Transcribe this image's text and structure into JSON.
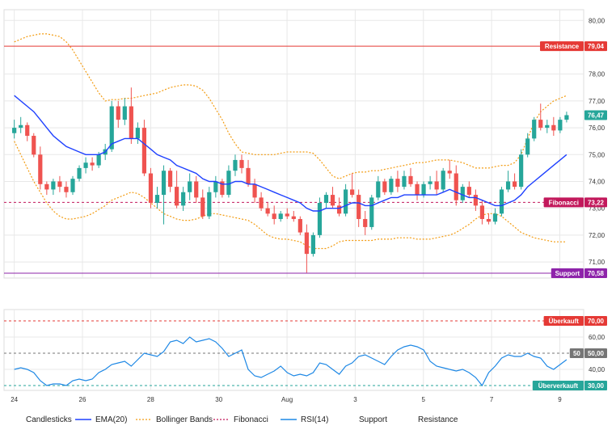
{
  "chart_data": {
    "type": "candlestick",
    "x_ticks": [
      {
        "label": "24",
        "x": 0
      },
      {
        "label": "26",
        "x": 2
      },
      {
        "label": "28",
        "x": 4
      },
      {
        "label": "30",
        "x": 6
      },
      {
        "label": "Aug",
        "x": 8
      },
      {
        "label": "3",
        "x": 10
      },
      {
        "label": "5",
        "x": 12
      },
      {
        "label": "7",
        "x": 14
      },
      {
        "label": "9",
        "x": 16
      }
    ],
    "x_range": [
      -0.3,
      16.7
    ],
    "price_axis": {
      "ylim": [
        70.4,
        80.4
      ],
      "ticks": [
        "71,00",
        "72,00",
        "73,00",
        "74,00",
        "75,00",
        "76,00",
        "77,00",
        "78,00",
        "80,00"
      ],
      "tick_values": [
        71,
        72,
        73,
        74,
        75,
        76,
        77,
        78,
        80
      ]
    },
    "rsi_axis": {
      "ylim": [
        27,
        77
      ],
      "ticks": [
        "40,00",
        "60,00"
      ],
      "tick_values": [
        40,
        60
      ]
    },
    "levels": {
      "resistance": {
        "value": 79.04,
        "label": "Resistance",
        "value_label": "79,04",
        "color": "#e53935"
      },
      "fibonacci": {
        "value": 73.22,
        "label": "Fibonacci",
        "value_label": "73,22",
        "color": "#c2185b"
      },
      "support": {
        "value": 70.58,
        "label": "Support",
        "value_label": "70,58",
        "color": "#8e24aa"
      },
      "last_price": {
        "value": 76.47,
        "label": "76,47",
        "color": "#26a69a"
      }
    },
    "rsi_levels": {
      "overbought": {
        "value": 70,
        "label": "Überkauft",
        "value_label": "70,00",
        "color": "#e53935"
      },
      "mid": {
        "value": 50,
        "label": "50",
        "value_label": "50,00",
        "color": "#757575"
      },
      "oversold": {
        "value": 30,
        "label": "Überverkauft",
        "value_label": "30,00",
        "color": "#26a69a"
      }
    },
    "candles": [
      [
        75.8,
        76.3,
        75.6,
        76.0
      ],
      [
        76.0,
        76.4,
        75.8,
        76.1
      ],
      [
        76.1,
        76.2,
        75.5,
        75.7
      ],
      [
        75.7,
        75.8,
        74.9,
        75.0
      ],
      [
        75.0,
        75.3,
        73.7,
        73.9
      ],
      [
        73.9,
        74.0,
        73.5,
        73.7
      ],
      [
        73.7,
        74.1,
        73.5,
        74.0
      ],
      [
        74.0,
        74.2,
        73.6,
        73.8
      ],
      [
        73.8,
        74.0,
        73.4,
        73.6
      ],
      [
        73.6,
        74.2,
        73.5,
        74.1
      ],
      [
        74.1,
        74.6,
        74.0,
        74.5
      ],
      [
        74.5,
        74.9,
        74.3,
        74.7
      ],
      [
        74.7,
        74.9,
        74.4,
        74.6
      ],
      [
        74.6,
        75.1,
        74.5,
        75.0
      ],
      [
        75.0,
        75.4,
        74.8,
        75.2
      ],
      [
        75.2,
        77.0,
        75.1,
        76.8
      ],
      [
        76.8,
        77.0,
        76.0,
        76.3
      ],
      [
        76.3,
        77.1,
        76.1,
        76.8
      ],
      [
        76.8,
        77.5,
        75.4,
        75.6
      ],
      [
        75.6,
        76.2,
        75.4,
        76.0
      ],
      [
        76.0,
        76.3,
        74.2,
        74.3
      ],
      [
        74.3,
        74.5,
        73.0,
        73.2
      ],
      [
        73.2,
        73.8,
        73.0,
        73.5
      ],
      [
        73.5,
        74.6,
        72.4,
        74.4
      ],
      [
        74.4,
        74.5,
        73.6,
        73.8
      ],
      [
        73.8,
        74.4,
        73.0,
        73.1
      ],
      [
        73.1,
        73.8,
        72.9,
        73.6
      ],
      [
        73.6,
        74.3,
        73.3,
        74.0
      ],
      [
        74.0,
        74.2,
        73.2,
        73.4
      ],
      [
        73.4,
        73.7,
        72.6,
        72.7
      ],
      [
        72.7,
        73.8,
        72.6,
        73.6
      ],
      [
        73.6,
        74.2,
        73.4,
        74.0
      ],
      [
        74.0,
        74.1,
        73.4,
        73.5
      ],
      [
        73.5,
        74.6,
        73.4,
        74.4
      ],
      [
        74.4,
        75.0,
        74.2,
        74.8
      ],
      [
        74.8,
        75.0,
        74.3,
        74.5
      ],
      [
        74.5,
        74.8,
        73.8,
        73.9
      ],
      [
        73.9,
        74.1,
        73.2,
        73.4
      ],
      [
        73.4,
        73.6,
        72.9,
        73.0
      ],
      [
        73.0,
        73.2,
        72.7,
        72.8
      ],
      [
        72.8,
        73.1,
        72.4,
        72.6
      ],
      [
        72.6,
        72.9,
        72.5,
        72.8
      ],
      [
        72.8,
        73.0,
        72.6,
        72.7
      ],
      [
        72.7,
        72.9,
        72.5,
        72.6
      ],
      [
        72.6,
        72.7,
        72.0,
        72.1
      ],
      [
        72.1,
        72.4,
        70.6,
        71.3
      ],
      [
        71.3,
        72.1,
        71.2,
        72.0
      ],
      [
        72.0,
        73.4,
        71.9,
        73.2
      ],
      [
        73.2,
        73.6,
        73.0,
        73.5
      ],
      [
        73.5,
        73.8,
        73.0,
        73.1
      ],
      [
        73.1,
        73.4,
        72.7,
        72.8
      ],
      [
        72.8,
        73.9,
        72.7,
        73.7
      ],
      [
        73.7,
        74.3,
        73.4,
        73.5
      ],
      [
        73.5,
        73.7,
        72.3,
        72.6
      ],
      [
        72.6,
        72.9,
        72.0,
        72.3
      ],
      [
        72.3,
        73.5,
        72.2,
        73.4
      ],
      [
        73.4,
        74.2,
        73.3,
        74.0
      ],
      [
        74.0,
        74.1,
        73.5,
        73.6
      ],
      [
        73.6,
        74.2,
        73.5,
        74.1
      ],
      [
        74.1,
        74.4,
        73.6,
        73.8
      ],
      [
        73.8,
        74.4,
        73.7,
        74.2
      ],
      [
        74.2,
        74.5,
        73.8,
        73.9
      ],
      [
        73.9,
        74.0,
        73.3,
        73.5
      ],
      [
        73.5,
        74.0,
        73.4,
        73.9
      ],
      [
        73.9,
        74.2,
        73.7,
        74.0
      ],
      [
        74.0,
        74.4,
        73.5,
        73.7
      ],
      [
        73.7,
        74.5,
        73.6,
        74.4
      ],
      [
        74.4,
        74.8,
        74.1,
        74.3
      ],
      [
        74.3,
        74.6,
        73.1,
        73.3
      ],
      [
        73.3,
        73.9,
        73.2,
        73.8
      ],
      [
        73.8,
        74.0,
        73.4,
        73.5
      ],
      [
        73.5,
        73.7,
        72.9,
        73.1
      ],
      [
        73.1,
        73.3,
        72.4,
        72.6
      ],
      [
        72.6,
        72.8,
        72.4,
        72.5
      ],
      [
        72.5,
        73.0,
        72.4,
        72.8
      ],
      [
        72.8,
        73.8,
        72.7,
        73.7
      ],
      [
        73.7,
        74.4,
        73.6,
        74.0
      ],
      [
        74.0,
        74.3,
        73.7,
        73.8
      ],
      [
        73.8,
        75.2,
        73.7,
        75.0
      ],
      [
        75.0,
        75.8,
        74.9,
        75.6
      ],
      [
        75.6,
        76.4,
        75.5,
        76.3
      ],
      [
        76.3,
        76.9,
        75.9,
        76.0
      ],
      [
        76.0,
        76.3,
        75.8,
        76.1
      ],
      [
        76.1,
        76.4,
        75.7,
        75.9
      ],
      [
        75.9,
        76.4,
        75.8,
        76.3
      ],
      [
        76.3,
        76.6,
        76.2,
        76.47
      ]
    ],
    "ema20": [
      77.2,
      77.0,
      76.8,
      76.6,
      76.3,
      76.0,
      75.7,
      75.5,
      75.3,
      75.2,
      75.1,
      75.0,
      75.0,
      75.0,
      75.1,
      75.4,
      75.5,
      75.6,
      75.6,
      75.6,
      75.4,
      75.2,
      75.0,
      74.9,
      74.8,
      74.6,
      74.5,
      74.4,
      74.3,
      74.1,
      74.0,
      74.0,
      73.9,
      73.9,
      74.0,
      74.0,
      73.9,
      73.9,
      73.8,
      73.7,
      73.6,
      73.5,
      73.4,
      73.3,
      73.2,
      73.0,
      72.9,
      72.9,
      73.0,
      73.0,
      73.0,
      73.1,
      73.2,
      73.2,
      73.1,
      73.1,
      73.2,
      73.3,
      73.4,
      73.4,
      73.5,
      73.5,
      73.5,
      73.5,
      73.5,
      73.5,
      73.6,
      73.7,
      73.6,
      73.5,
      73.4,
      73.4,
      73.3,
      73.2,
      73.1,
      73.1,
      73.2,
      73.3,
      73.5,
      73.8,
      74.0,
      74.2,
      74.4,
      74.6,
      74.8,
      75.0
    ],
    "bb_upper": [
      79.2,
      79.3,
      79.4,
      79.45,
      79.5,
      79.5,
      79.45,
      79.4,
      79.2,
      78.9,
      78.5,
      78.1,
      77.7,
      77.3,
      77.0,
      77.05,
      77.05,
      77.1,
      77.1,
      77.15,
      77.2,
      77.25,
      77.3,
      77.4,
      77.5,
      77.55,
      77.6,
      77.6,
      77.55,
      77.4,
      77.1,
      76.7,
      76.3,
      75.8,
      75.4,
      75.1,
      75.05,
      75.0,
      75.0,
      75.0,
      75.0,
      75.05,
      75.1,
      75.1,
      75.1,
      75.1,
      75.05,
      74.8,
      74.5,
      74.2,
      74.1,
      74.2,
      74.3,
      74.35,
      74.35,
      74.4,
      74.4,
      74.45,
      74.5,
      74.55,
      74.6,
      74.65,
      74.7,
      74.7,
      74.75,
      74.8,
      74.8,
      74.8,
      74.75,
      74.7,
      74.6,
      74.5,
      74.5,
      74.5,
      74.55,
      74.6,
      74.6,
      74.7,
      75.0,
      75.6,
      76.2,
      76.6,
      76.8,
      77.0,
      77.1,
      77.2
    ],
    "bb_lower": [
      75.5,
      75.0,
      74.5,
      74.0,
      73.6,
      73.2,
      72.9,
      72.7,
      72.6,
      72.6,
      72.65,
      72.7,
      72.8,
      72.95,
      73.1,
      73.3,
      73.4,
      73.5,
      73.6,
      73.55,
      73.4,
      73.2,
      73.0,
      72.8,
      72.7,
      72.6,
      72.55,
      72.55,
      72.6,
      72.7,
      72.8,
      72.8,
      72.75,
      72.7,
      72.65,
      72.6,
      72.55,
      72.4,
      72.2,
      72.0,
      71.9,
      71.85,
      71.85,
      71.8,
      71.75,
      71.6,
      71.5,
      71.5,
      71.5,
      71.6,
      71.75,
      71.8,
      71.8,
      71.8,
      71.8,
      71.8,
      71.85,
      71.85,
      71.85,
      71.9,
      71.9,
      71.9,
      71.85,
      71.85,
      71.85,
      71.9,
      71.95,
      72.0,
      72.1,
      72.25,
      72.4,
      72.6,
      72.75,
      72.8,
      72.8,
      72.7,
      72.5,
      72.3,
      72.1,
      72.0,
      71.9,
      71.85,
      71.8,
      71.75,
      71.75,
      71.75
    ],
    "rsi14": [
      40,
      41,
      40,
      38,
      33,
      30,
      31,
      31,
      30,
      33,
      34,
      33,
      34,
      38,
      40,
      43,
      44,
      45,
      42,
      46,
      50,
      49,
      48,
      51,
      57,
      58,
      56,
      60,
      57,
      58,
      59,
      57,
      53,
      48,
      50,
      52,
      40,
      36,
      35,
      37,
      39,
      42,
      38,
      36,
      37,
      36,
      38,
      44,
      43,
      40,
      37,
      42,
      44,
      48,
      49,
      47,
      45,
      43,
      48,
      52,
      54,
      55,
      54,
      52,
      45,
      42,
      41,
      40,
      39,
      40,
      38,
      35,
      30,
      38,
      42,
      47,
      49,
      48,
      48,
      50,
      48,
      47,
      42,
      40,
      43,
      46
    ],
    "legend": [
      {
        "label": "Candlesticks",
        "color": "#e53935"
      },
      {
        "label": "EMA(20)",
        "color": "#1e40ff"
      },
      {
        "label": "Bollinger Bands",
        "color": "#f39c12"
      },
      {
        "label": "Fibonacci",
        "color": "#c2185b"
      },
      {
        "label": "RSI(14)",
        "color": "#1e88e5"
      },
      {
        "label": "Support",
        "color": "#8e24aa"
      },
      {
        "label": "Resistance",
        "color": "#e53935"
      }
    ],
    "colors": {
      "up": "#26a69a",
      "down": "#ef5350",
      "grid": "#e8e8e8"
    }
  }
}
